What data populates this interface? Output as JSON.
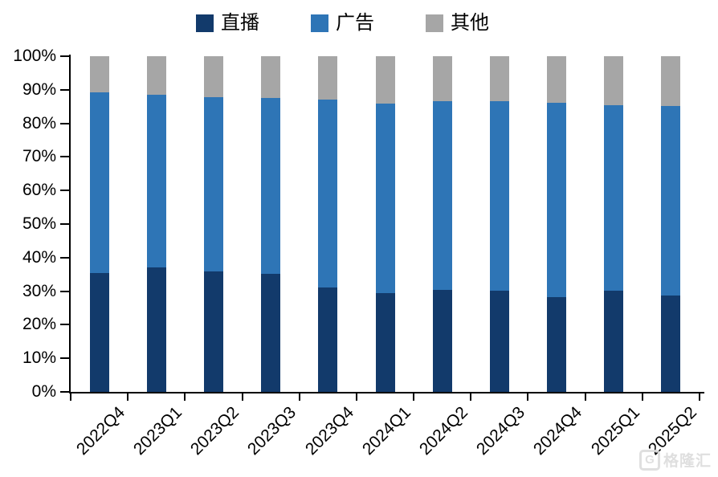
{
  "chart_data": {
    "type": "bar",
    "subtype": "stacked-100-percent",
    "title": "",
    "xlabel": "",
    "ylabel": "",
    "ylim": [
      0,
      100
    ],
    "grid": false,
    "legend_position": "top",
    "y_tick_labels": [
      "0%",
      "10%",
      "20%",
      "30%",
      "40%",
      "50%",
      "60%",
      "70%",
      "80%",
      "90%",
      "100%"
    ],
    "categories": [
      "2022Q4",
      "2023Q1",
      "2023Q2",
      "2023Q3",
      "2023Q4",
      "2024Q1",
      "2024Q2",
      "2024Q3",
      "2024Q4",
      "2025Q1",
      "2025Q2"
    ],
    "series": [
      {
        "name": "直播",
        "color": "#123a6b",
        "values": [
          35.5,
          37.2,
          36.0,
          35.2,
          31.2,
          29.5,
          30.4,
          30.1,
          28.2,
          30.2,
          28.8
        ]
      },
      {
        "name": "广告",
        "color": "#2e75b6",
        "values": [
          53.7,
          51.4,
          51.8,
          52.4,
          55.8,
          56.5,
          56.2,
          56.6,
          58.0,
          55.1,
          56.3
        ]
      },
      {
        "name": "其他",
        "color": "#a6a6a6",
        "values": [
          10.8,
          11.4,
          12.2,
          12.4,
          13.0,
          14.0,
          13.4,
          13.3,
          13.8,
          14.7,
          14.9
        ]
      }
    ]
  },
  "watermark": {
    "logo": "G",
    "text": "格隆汇"
  }
}
